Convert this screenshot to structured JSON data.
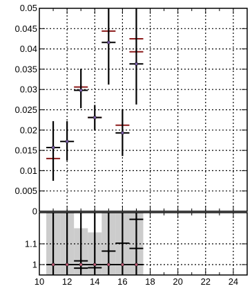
{
  "chart_data": [
    {
      "type": "scatter",
      "panel": "main",
      "grid": true,
      "ylim": [
        0,
        0.05
      ],
      "xlim": [
        10,
        25
      ],
      "y_tick_labels": [
        "0",
        "0.005",
        "0.01",
        "0.015",
        "0.02",
        "0.025",
        "0.03",
        "0.035",
        "0.04",
        "0.045",
        "0.05"
      ],
      "y_tick_values": [
        0,
        0.005,
        0.01,
        0.015,
        0.02,
        0.025,
        0.03,
        0.035,
        0.04,
        0.045,
        0.05
      ],
      "series": [
        {
          "style": "crosses",
          "color": "#8b1a1a",
          "points": [
            {
              "x": 11,
              "y": 0.013,
              "xerr": 0.5
            },
            {
              "x": 13,
              "y": 0.0306,
              "xerr": 0.5
            },
            {
              "x": 14,
              "y": 0.0231,
              "xerr": 0.5
            },
            {
              "x": 15,
              "y": 0.0444,
              "xerr": 0.5
            },
            {
              "x": 16,
              "y": 0.0212,
              "xerr": 0.5
            },
            {
              "x": 17,
              "y": 0.0425,
              "xerr": 0.5
            },
            {
              "x": 17,
              "y": 0.0393,
              "xerr": 0.5
            }
          ]
        },
        {
          "style": "markers_with_errors",
          "color": "#000000",
          "marker_color": "#7b5ea7",
          "points": [
            {
              "x": 11,
              "y": 0.0157,
              "xerr": 0.5,
              "ylow": 0.0075,
              "yhigh": 0.0222
            },
            {
              "x": 12,
              "y": 0.0172,
              "xerr": 0.5,
              "ylow": 0.0125,
              "yhigh": 0.0222
            },
            {
              "x": 13,
              "y": 0.0298,
              "xerr": 0.5,
              "ylow": 0.0254,
              "yhigh": 0.0351
            },
            {
              "x": 14,
              "y": 0.0231,
              "xerr": 0.5,
              "ylow": 0.02,
              "yhigh": 0.0262
            },
            {
              "x": 15,
              "y": 0.0416,
              "xerr": 0.5,
              "ylow": 0.0312,
              "yhigh": 0.05
            },
            {
              "x": 16,
              "y": 0.0193,
              "xerr": 0.5,
              "ylow": 0.0136,
              "yhigh": 0.0251
            },
            {
              "x": 17,
              "y": 0.0363,
              "xerr": 0.5,
              "ylow": 0.0263,
              "yhigh": 0.05
            }
          ]
        }
      ]
    },
    {
      "type": "scatter",
      "panel": "ratio",
      "grid": true,
      "ylim": [
        0.95,
        1.25
      ],
      "xlim": [
        10,
        25
      ],
      "y_tick_labels": [
        "1",
        "1.1"
      ],
      "y_tick_values": [
        1,
        1.1
      ],
      "x_tick_labels": [
        "10",
        "12",
        "14",
        "16",
        "18",
        "20",
        "22",
        "24"
      ],
      "x_tick_values": [
        10,
        12,
        14,
        16,
        18,
        20,
        22,
        24
      ],
      "band": {
        "color": "#cccccc",
        "bins": [
          {
            "xlow": 10.5,
            "xhigh": 11.5,
            "ylow": 0.95,
            "yhigh": 1.25
          },
          {
            "xlow": 11.5,
            "xhigh": 12.5,
            "ylow": 0.95,
            "yhigh": 1.25
          },
          {
            "xlow": 12.5,
            "xhigh": 13.5,
            "ylow": 0.95,
            "yhigh": 1.175
          },
          {
            "xlow": 13.5,
            "xhigh": 14.5,
            "ylow": 0.95,
            "yhigh": 1.155
          },
          {
            "xlow": 14.5,
            "xhigh": 15.5,
            "ylow": 0.95,
            "yhigh": 1.25
          },
          {
            "xlow": 15.5,
            "xhigh": 16.5,
            "ylow": 0.95,
            "yhigh": 1.25
          },
          {
            "xlow": 16.5,
            "xhigh": 17.5,
            "ylow": 0.95,
            "yhigh": 1.25
          }
        ]
      },
      "series": [
        {
          "style": "markers_with_errors",
          "color": "#000000",
          "marker_color": "#c0607a",
          "points": [
            {
              "x": 11,
              "y": 1.0,
              "xerr": 0.5,
              "ylow": 0.95,
              "yhigh": 1.25
            },
            {
              "x": 12,
              "y": 1.0,
              "xerr": 0.5,
              "ylow": 0.95,
              "yhigh": 1.25
            },
            {
              "x": 13,
              "y": 1.0,
              "xerr": 0.5,
              "ylow": 0.95,
              "yhigh": 1.25
            },
            {
              "x": 14,
              "y": 1.0,
              "xerr": 0.5,
              "ylow": 0.95,
              "yhigh": 1.25
            },
            {
              "x": 15,
              "y": 1.0,
              "xerr": 0.5,
              "ylow": 0.95,
              "yhigh": 1.25
            },
            {
              "x": 16,
              "y": 1.0,
              "xerr": 0.5,
              "ylow": 0.95,
              "yhigh": 1.25
            },
            {
              "x": 17,
              "y": 1.0,
              "xerr": 0.5,
              "ylow": 0.95,
              "yhigh": 1.25
            }
          ]
        },
        {
          "style": "crosses",
          "color": "#000000",
          "points": [
            {
              "x": 13,
              "y": 1.018,
              "xerr": 0.5
            },
            {
              "x": 13,
              "y": 0.983,
              "xerr": 0.5
            },
            {
              "x": 14,
              "y": 0.985,
              "xerr": 0.5
            },
            {
              "x": 15,
              "y": 1.065,
              "xerr": 0.5
            },
            {
              "x": 16,
              "y": 1.103,
              "xerr": 0.5
            },
            {
              "x": 17,
              "y": 1.218,
              "xerr": 0.5
            },
            {
              "x": 17,
              "y": 1.078,
              "xerr": 0.5
            }
          ]
        }
      ]
    }
  ]
}
